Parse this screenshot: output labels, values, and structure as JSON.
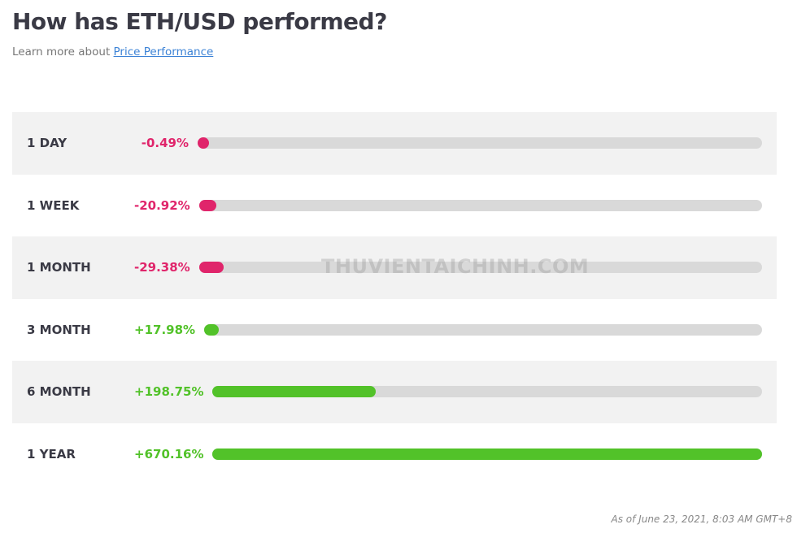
{
  "header": {
    "title": "How has ETH/USD performed?",
    "subtitle": "Learn more about",
    "link": "Price Performance"
  },
  "rows": [
    {
      "label": "1 DAY",
      "value": -0.49,
      "value_label": "-0.49%",
      "color": "#e0256b"
    },
    {
      "label": "1 WEEK",
      "value": -20.92,
      "value_label": "-20.92%",
      "color": "#e0256b"
    },
    {
      "label": "1 MONTH",
      "value": -29.38,
      "value_label": "-29.38%",
      "color": "#e0256b"
    },
    {
      "label": "3 MONTH",
      "value": 17.98,
      "value_label": "+17.98%",
      "color": "#52c229"
    },
    {
      "label": "6 MONTH",
      "value": 198.75,
      "value_label": "+198.75%",
      "color": "#52c229"
    },
    {
      "label": "1 YEAR",
      "value": 670.16,
      "value_label": "+670.16%",
      "color": "#52c229"
    }
  ],
  "watermark": "THUVIENTAICHINH.COM",
  "footer": "As of June 23, 2021, 8:03 AM GMT+8"
}
